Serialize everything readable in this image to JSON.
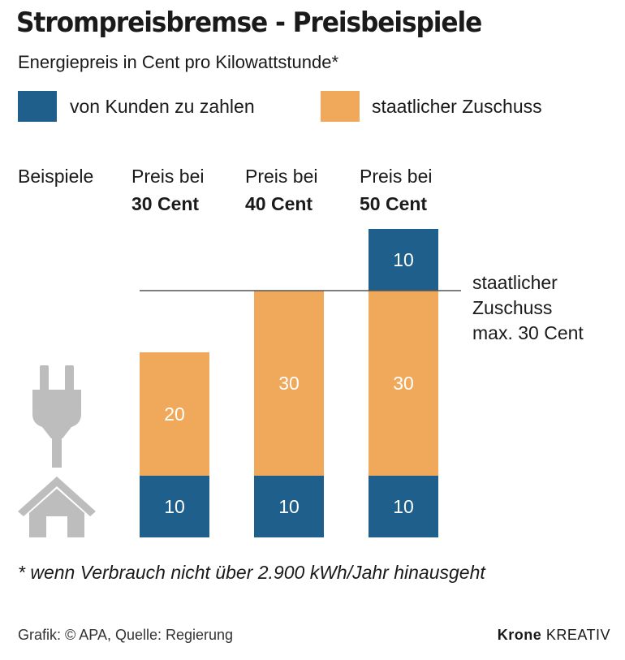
{
  "title": "Strompreisbremse - Preisbeispiele",
  "subtitle": "Energiepreis in Cent pro Kilowattstunde*",
  "colors": {
    "customer": "#1f5f8b",
    "subsidy": "#f0a95a",
    "icon": "#bdbdbd",
    "text": "#1a1a1a"
  },
  "legend": [
    {
      "label": "von Kunden zu zahlen",
      "color": "#1f5f8b"
    },
    {
      "label": "staatlicher Zuschuss",
      "color": "#f0a95a"
    }
  ],
  "row_label": "Beispiele",
  "columns": [
    {
      "line1": "Preis bei",
      "line2": "30 Cent"
    },
    {
      "line1": "Preis bei",
      "line2": "40 Cent"
    },
    {
      "line1": "Preis bei",
      "line2": "50 Cent"
    }
  ],
  "annotation": {
    "line1": "staatlicher",
    "line2": "Zuschuss",
    "line3": "max. 30 Cent"
  },
  "footnote": "* wenn Verbrauch nicht über 2.900 kWh/Jahr hinausgeht",
  "source": "Grafik: © APA, Quelle: Regierung",
  "brand": {
    "bold": "Krone",
    "regular": "KREATIV"
  },
  "icons": [
    "plug-icon",
    "house-icon"
  ],
  "chart_data": {
    "type": "bar",
    "stacked": true,
    "categories": [
      "Preis bei 30 Cent",
      "Preis bei 40 Cent",
      "Preis bei 50 Cent"
    ],
    "series": [
      {
        "name": "von Kunden zu zahlen",
        "values": [
          10,
          10,
          10
        ]
      },
      {
        "name": "staatlicher Zuschuss",
        "values": [
          20,
          30,
          30
        ]
      },
      {
        "name": "von Kunden zu zahlen",
        "values": [
          0,
          0,
          10
        ]
      }
    ],
    "reference_line": {
      "value": 30
    },
    "ylim": [
      0,
      50
    ]
  }
}
